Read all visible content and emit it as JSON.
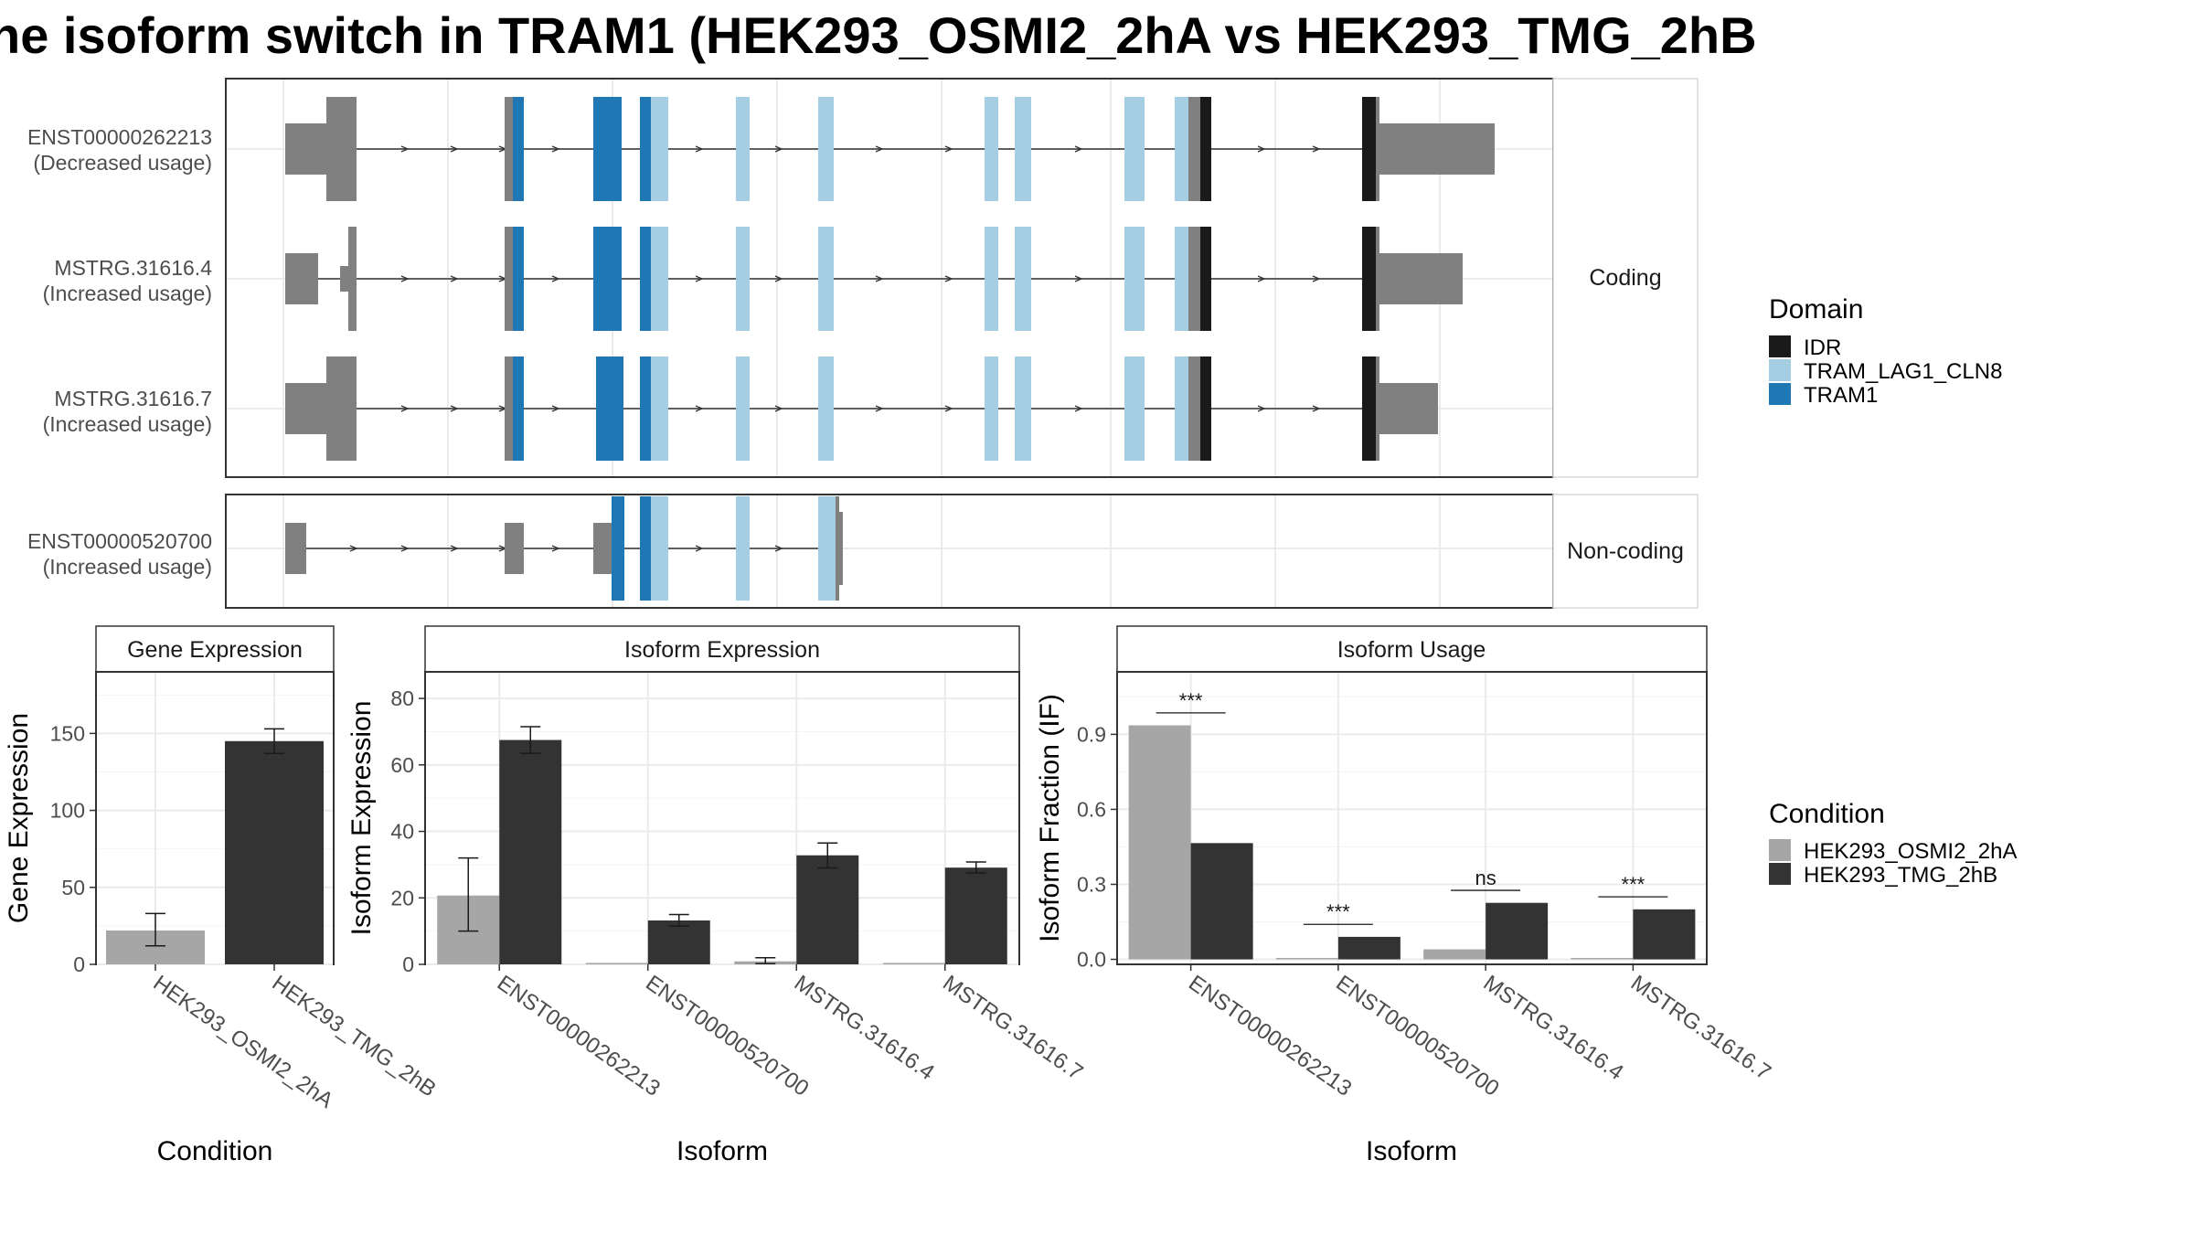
{
  "title": "he isoform switch in TRAM1 (HEK293_OSMI2_2hA vs HEK293_TMG_2hB",
  "colors": {
    "IDR": "#1a1a1a",
    "TRAM_LAG1_CLN8": "#a6cee3",
    "TRAM1": "#1f78b4",
    "exon": "#808080",
    "condA": "#a6a6a6",
    "condB": "#333333",
    "grid": "#ebebeb",
    "strip": "#ffffff",
    "panel_border": "#333333"
  },
  "structure": {
    "coding_facet_label": "Coding",
    "noncoding_facet_label": "Non-coding",
    "isoforms": [
      {
        "id": "ENST00000262213",
        "usage": "(Decreased usage)",
        "facet": "coding"
      },
      {
        "id": "MSTRG.31616.4",
        "usage": "(Increased usage)",
        "facet": "coding"
      },
      {
        "id": "MSTRG.31616.7",
        "usage": "(Increased usage)",
        "facet": "coding"
      },
      {
        "id": "ENST00000520700",
        "usage": "(Increased usage)",
        "facet": "noncoding"
      }
    ]
  },
  "legend_domain": {
    "title": "Domain",
    "items": [
      {
        "label": "IDR",
        "color": "#1a1a1a"
      },
      {
        "label": "TRAM_LAG1_CLN8",
        "color": "#a6cee3"
      },
      {
        "label": "TRAM1",
        "color": "#1f78b4"
      }
    ]
  },
  "legend_condition": {
    "title": "Condition",
    "items": [
      {
        "label": "HEK293_OSMI2_2hA",
        "color": "#a6a6a6"
      },
      {
        "label": "HEK293_TMG_2hB",
        "color": "#333333"
      }
    ]
  },
  "chart_data": [
    {
      "type": "bar",
      "title": "Gene Expression",
      "xlabel": "Condition",
      "ylabel": "Gene Expression",
      "ylim": [
        0,
        190
      ],
      "yticks": [
        0,
        50,
        100,
        150
      ],
      "categories": [
        "HEK293_OSMI2_2hA",
        "HEK293_TMG_2hB"
      ],
      "values": [
        22,
        145
      ],
      "errors": [
        [
          12,
          33
        ],
        [
          137,
          153
        ]
      ],
      "grid": true
    },
    {
      "type": "bar",
      "title": "Isoform Expression",
      "xlabel": "Isoform",
      "ylabel": "Isoform Expression",
      "ylim": [
        0,
        88
      ],
      "yticks": [
        0,
        20,
        40,
        60,
        80
      ],
      "categories": [
        "ENST00000262213",
        "ENST00000520700",
        "MSTRG.31616.4",
        "MSTRG.31616.7"
      ],
      "series": [
        {
          "name": "HEK293_OSMI2_2hA",
          "values": [
            20.7,
            0,
            0.9,
            0
          ],
          "errors": [
            [
              10,
              32
            ],
            [
              0,
              0
            ],
            [
              0.2,
              2.0
            ],
            [
              0,
              0
            ]
          ]
        },
        {
          "name": "HEK293_TMG_2hB",
          "values": [
            67.5,
            13.2,
            32.8,
            29.1
          ],
          "errors": [
            [
              63.5,
              71.5
            ],
            [
              11.5,
              15
            ],
            [
              29,
              36.5
            ],
            [
              27.5,
              30.8
            ]
          ]
        }
      ],
      "grid": true
    },
    {
      "type": "bar",
      "title": "Isoform Usage",
      "xlabel": "Isoform",
      "ylabel": "Isoform Fraction (IF)",
      "ylim": [
        -0.02,
        1.15
      ],
      "yticks": [
        0.0,
        0.3,
        0.6,
        0.9
      ],
      "categories": [
        "ENST00000262213",
        "ENST00000520700",
        "MSTRG.31616.4",
        "MSTRG.31616.7"
      ],
      "series": [
        {
          "name": "HEK293_OSMI2_2hA",
          "values": [
            0.936,
            0,
            0.04,
            0
          ]
        },
        {
          "name": "HEK293_TMG_2hB",
          "values": [
            0.465,
            0.09,
            0.226,
            0.2
          ]
        }
      ],
      "significance": [
        "***",
        "***",
        "ns",
        "***"
      ],
      "grid": true
    }
  ]
}
